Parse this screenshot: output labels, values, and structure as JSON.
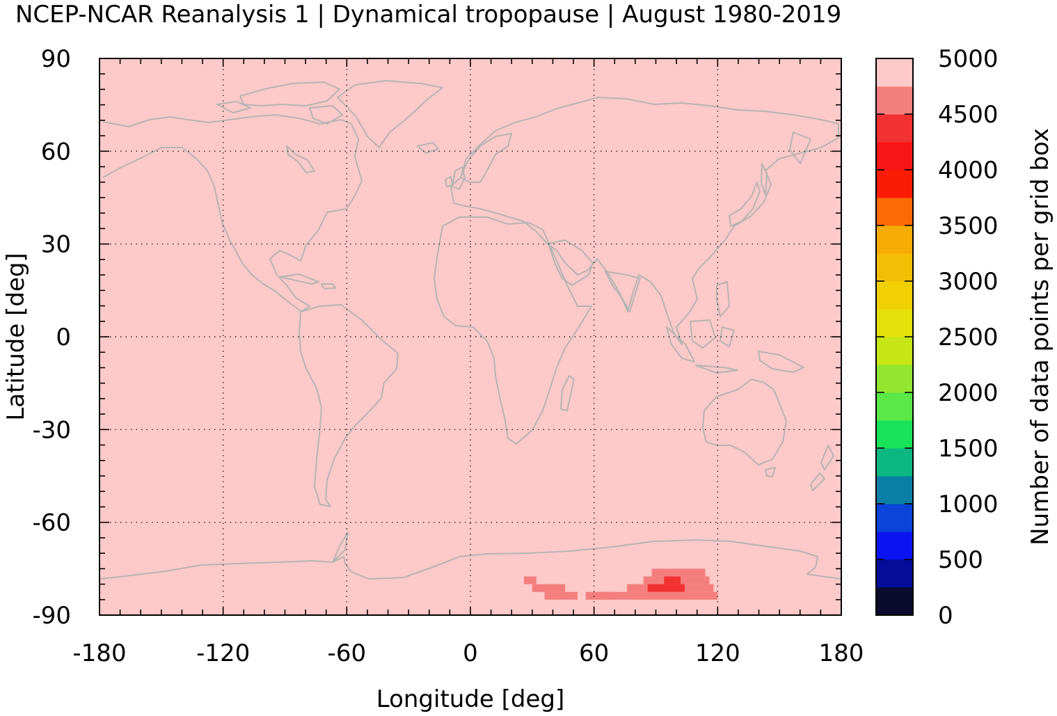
{
  "chart_data": {
    "type": "heatmap",
    "title": "NCEP-NCAR Reanalysis 1 | Dynamical tropopause | August 1980-2019",
    "xlabel": "Longitude [deg]",
    "ylabel": "Latitude [deg]",
    "xlim": [
      -180,
      180
    ],
    "ylim": [
      -90,
      90
    ],
    "x_ticks": [
      "-180",
      "-120",
      "-60",
      "0",
      "60",
      "120",
      "180"
    ],
    "y_ticks": [
      "90",
      "60",
      "30",
      "0",
      "-30",
      "-60",
      "-90"
    ],
    "grid": true,
    "background_value": 5000,
    "colorbar": {
      "label": "Number of data points per grid box",
      "ticks": [
        "5000",
        "4500",
        "4000",
        "3500",
        "3000",
        "2500",
        "2000",
        "1500",
        "1000",
        "500",
        "0"
      ],
      "levels": [
        0,
        250,
        500,
        750,
        1000,
        1250,
        1500,
        1750,
        2000,
        2250,
        2500,
        2750,
        3000,
        3250,
        3500,
        3750,
        4000,
        4250,
        4500,
        4750,
        5000
      ],
      "colors": [
        "#0b0b2e",
        "#040c99",
        "#0a14f0",
        "#0a44d9",
        "#0a7fa6",
        "#0bb882",
        "#19e35a",
        "#59e845",
        "#92e630",
        "#c6e616",
        "#e4e00c",
        "#f0cf05",
        "#f4be05",
        "#f6ac05",
        "#fa6a05",
        "#fb1c05",
        "#f71618",
        "#f23232",
        "#f47e7e",
        "#fec9c9"
      ]
    },
    "cells": [
      {
        "lon": [
          26,
          32
        ],
        "lat": [
          -77.5,
          -80
        ],
        "value": 4625
      },
      {
        "lon": [
          30,
          46
        ],
        "lat": [
          -80,
          -82.5
        ],
        "value": 4625
      },
      {
        "lon": [
          36,
          52
        ],
        "lat": [
          -82.5,
          -85
        ],
        "value": 4625
      },
      {
        "lon": [
          56,
          70
        ],
        "lat": [
          -82.5,
          -85
        ],
        "value": 4625
      },
      {
        "lon": [
          62,
          120
        ],
        "lat": [
          -82.5,
          -85
        ],
        "value": 4625
      },
      {
        "lon": [
          76,
          118
        ],
        "lat": [
          -80,
          -82.5
        ],
        "value": 4625
      },
      {
        "lon": [
          84,
          116
        ],
        "lat": [
          -77.5,
          -80
        ],
        "value": 4625
      },
      {
        "lon": [
          88,
          114
        ],
        "lat": [
          -75,
          -77.5
        ],
        "value": 4625
      },
      {
        "lon": [
          86,
          104
        ],
        "lat": [
          -80,
          -82.5
        ],
        "value": 4400
      },
      {
        "lon": [
          94,
          102
        ],
        "lat": [
          -77.5,
          -80
        ],
        "value": 4400
      }
    ],
    "coastline_color": "#b4b4b4"
  }
}
